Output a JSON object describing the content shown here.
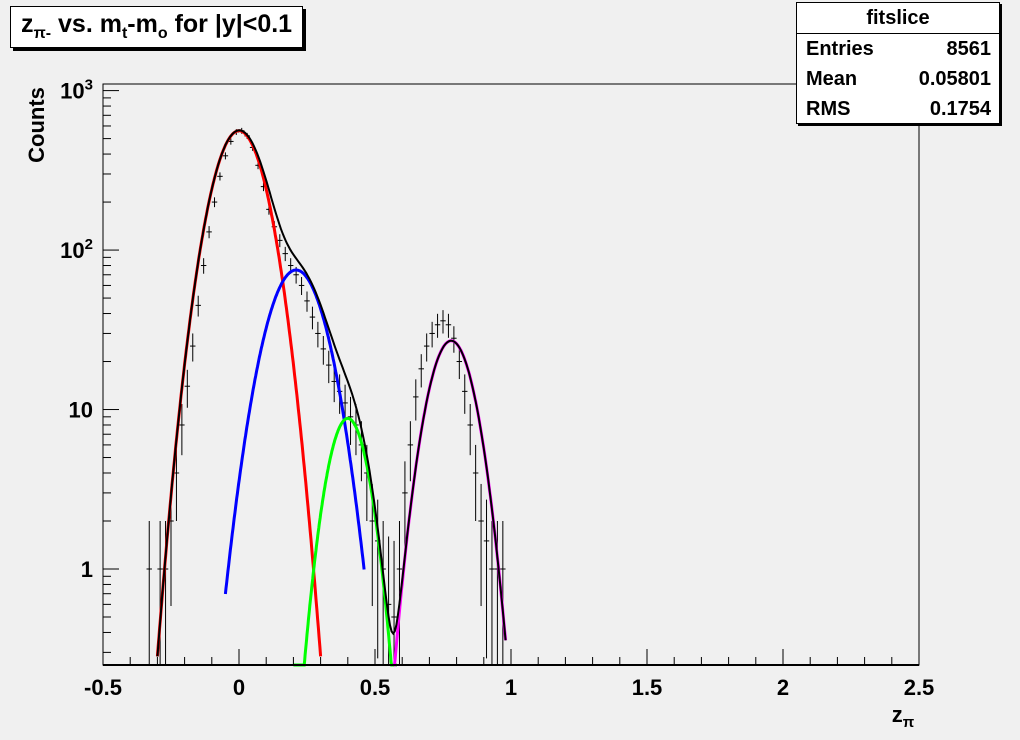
{
  "title": {
    "text": "z",
    "sub": "π-",
    "rest": " vs. m",
    "sub2": "t",
    "rest2": "-m",
    "sub3": "o",
    "rest3": " for |y|<0.1"
  },
  "stats": {
    "name": "fitslice",
    "rows": [
      {
        "key": "Entries",
        "value": "8561"
      },
      {
        "key": "Mean",
        "value": "0.05801"
      },
      {
        "key": "RMS",
        "value": "0.1754"
      }
    ]
  },
  "chart_data": {
    "type": "line",
    "title": "zπ- vs. mt-mo for |y|<0.1",
    "xlabel": "zπ",
    "ylabel": "Counts",
    "xlim": [
      -0.5,
      2.5
    ],
    "ylim": [
      0.25,
      1100
    ],
    "log_y": true,
    "grid": false,
    "x_ticks": [
      "-0.5",
      "0",
      "0.5",
      "1",
      "1.5",
      "2",
      "2.5"
    ],
    "y_ticks": [
      {
        "value": 1,
        "label": "1"
      },
      {
        "value": 10,
        "label": "10"
      },
      {
        "value": 100,
        "label": "10",
        "exp": "2"
      },
      {
        "value": 1000,
        "label": "10",
        "exp": "3"
      }
    ],
    "histogram": {
      "color": "#000000",
      "x": [
        -0.33,
        -0.29,
        -0.27,
        -0.25,
        -0.23,
        -0.21,
        -0.19,
        -0.17,
        -0.15,
        -0.13,
        -0.11,
        -0.09,
        -0.07,
        -0.05,
        -0.03,
        -0.01,
        0.01,
        0.03,
        0.05,
        0.07,
        0.09,
        0.11,
        0.13,
        0.15,
        0.17,
        0.19,
        0.21,
        0.23,
        0.25,
        0.27,
        0.29,
        0.31,
        0.33,
        0.35,
        0.37,
        0.39,
        0.41,
        0.43,
        0.45,
        0.47,
        0.49,
        0.51,
        0.53,
        0.55,
        0.57,
        0.59,
        0.61,
        0.63,
        0.65,
        0.67,
        0.69,
        0.71,
        0.73,
        0.75,
        0.77,
        0.79,
        0.81,
        0.83,
        0.85,
        0.87,
        0.89,
        0.91,
        0.93,
        0.95,
        0.97
      ],
      "y": [
        1,
        1,
        1,
        2,
        4,
        8,
        14,
        25,
        45,
        80,
        130,
        200,
        290,
        390,
        480,
        550,
        560,
        520,
        440,
        340,
        250,
        180,
        140,
        115,
        95,
        80,
        70,
        60,
        48,
        38,
        30,
        24,
        19,
        15,
        13,
        11,
        9,
        8,
        6,
        4,
        2,
        1.5,
        1,
        0.6,
        0.5,
        1,
        3,
        6,
        12,
        18,
        25,
        30,
        34,
        36,
        34,
        28,
        20,
        13,
        8,
        4,
        2,
        1.5,
        1,
        1,
        1
      ]
    },
    "series": [
      {
        "color": "#ff0000",
        "type": "gaussian",
        "amplitude": 560,
        "mean": 0.0,
        "sigma": 0.077,
        "range": [
          -0.3,
          0.3
        ]
      },
      {
        "color": "#0000ff",
        "type": "gaussian",
        "amplitude": 75,
        "mean": 0.21,
        "sigma": 0.085,
        "range": [
          -0.05,
          0.46
        ]
      },
      {
        "color": "#00ff00",
        "type": "gaussian",
        "amplitude": 8.8,
        "mean": 0.4,
        "sigma": 0.06,
        "range": [
          0.2,
          0.58
        ]
      },
      {
        "color": "#ff00ff",
        "type": "gaussian",
        "amplitude": 27,
        "mean": 0.78,
        "sigma": 0.068,
        "range": [
          0.57,
          0.98
        ]
      },
      {
        "color": "#000000",
        "type": "sum",
        "range": [
          -0.3,
          0.98
        ]
      }
    ]
  }
}
